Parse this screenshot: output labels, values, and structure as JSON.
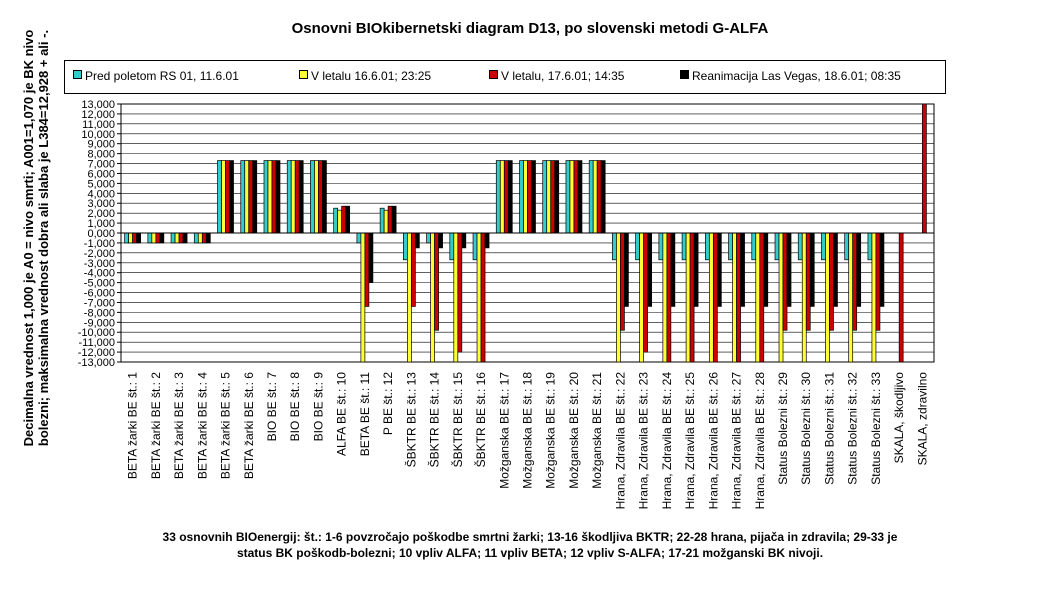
{
  "chart_data": {
    "type": "bar",
    "title": "Osnovni BIOkibernetski diagram D13, po slovenski metodi G-ALFA",
    "ylabel": "Decimalna vrednost 1,000 je A0 = nivo smrti; A001=1,070 je BK nivo bolezni; maksimalna vrednost dobra ali slaba je L384=12,928 + ali -.",
    "xlabel": "",
    "ylim": [
      -13,
      13
    ],
    "y_ticks": [
      "-13,000",
      "-12,000",
      "-11,000",
      "-10,000",
      "-9,000",
      "-8,000",
      "-7,000",
      "-6,000",
      "-5,000",
      "-4,000",
      "-3,000",
      "-2,000",
      "-1,000",
      "0,000",
      "1,000",
      "2,000",
      "3,000",
      "4,000",
      "5,000",
      "6,000",
      "7,000",
      "8,000",
      "9,000",
      "10,000",
      "11,000",
      "12,000",
      "13,000"
    ],
    "grid": true,
    "legend_position": "top",
    "categories": [
      "BETA žarki BE št.: 1",
      "BETA žarki BE št.: 2",
      "BETA žarki BE št.: 3",
      "BETA žarki BE št.: 4",
      "BETA žarki BE št.: 5",
      "BETA žarki BE št.: 6",
      "BIO BE št.: 7",
      "BIO BE št.: 8",
      "BIO BE št.: 9",
      "ALFA BE št.: 10",
      "BETA BE št.: 11",
      "P BE št.: 12",
      "ŠBKTR BE št.: 13",
      "ŠBKTR BE št.: 14",
      "ŠBKTR BE št.: 15",
      "ŠBKTR BE št.: 16",
      "Možganska BE št.: 17",
      "Možganska BE št.: 18",
      "Možganska BE št.: 19",
      "Možganska BE št.: 20",
      "Možganska BE št.: 21",
      "Hrana, Zdravila BE št.: 22",
      "Hrana, Zdravila BE št.: 23",
      "Hrana, Zdravila BE št.: 24",
      "Hrana, Zdravila BE št.: 25",
      "Hrana, Zdravila BE št.: 26",
      "Hrana, Zdravila BE št.: 27",
      "Hrana, Zdravila BE št.: 28",
      "Status Bolezni št.: 29",
      "Status Bolezni št.: 30",
      "Status Bolezni št.: 31",
      "Status Bolezni št.: 32",
      "Status Bolezni št.: 33",
      "SKALA, škodljivo",
      "SKALA, zdravilno"
    ],
    "series": [
      {
        "name": "Pred poletom RS 01, 11.6.01",
        "color": "#33cccc",
        "values": [
          -1,
          -1,
          -1,
          -1,
          7.3,
          7.3,
          7.3,
          7.3,
          7.3,
          2.5,
          -1,
          2.5,
          -2.7,
          -1,
          -2.7,
          -2.7,
          7.3,
          7.3,
          7.3,
          7.3,
          7.3,
          -2.7,
          -2.7,
          -2.7,
          -2.7,
          -2.7,
          -2.7,
          -2.7,
          -2.7,
          -2.7,
          -2.7,
          -2.7,
          -2.7,
          0,
          0
        ]
      },
      {
        "name": "V letalu 16.6.01; 23:25",
        "color": "#ffff33",
        "values": [
          -1,
          -1,
          -1,
          -1,
          7.3,
          7.3,
          7.3,
          7.3,
          7.3,
          2.3,
          -13,
          2.3,
          -13,
          -13,
          -13,
          -13,
          7.3,
          7.3,
          7.3,
          7.3,
          7.3,
          -13,
          -13,
          -13,
          -13,
          -13,
          -13,
          -13,
          -13,
          -13,
          -13,
          -13,
          -13,
          0,
          0
        ]
      },
      {
        "name": "V letalu, 17.6.01; 14:35",
        "color": "#cc0000",
        "values": [
          -1,
          -1,
          -1,
          -1,
          7.3,
          7.3,
          7.3,
          7.3,
          7.3,
          2.7,
          -7.4,
          2.7,
          -7.4,
          -9.8,
          -12,
          -13,
          7.3,
          7.3,
          7.3,
          7.3,
          7.3,
          -9.8,
          -12,
          -13,
          -13,
          -13,
          -13,
          -13,
          -9.8,
          -9.8,
          -9.8,
          -9.8,
          -9.8,
          -13,
          13
        ]
      },
      {
        "name": "Reanimacija Las Vegas, 18.6.01; 08:35",
        "color": "#000000",
        "values": [
          -1,
          -1,
          -1,
          -1,
          7.3,
          7.3,
          7.3,
          7.3,
          7.3,
          2.7,
          -5,
          2.7,
          -1.5,
          -1.5,
          -1.5,
          -1.5,
          7.3,
          7.3,
          7.3,
          7.3,
          7.3,
          -7.4,
          -7.4,
          -7.4,
          -7.4,
          -7.4,
          -7.4,
          -7.4,
          -7.4,
          -7.4,
          -7.4,
          -7.4,
          -7.4,
          0,
          0
        ]
      }
    ],
    "footnote_line1": "33 osnovnih BIOenergij: št.: 1-6 povzročajo poškodbe smrtni žarki; 13-16 škodljiva BKTR; 22-28 hrana, pijača in zdravila; 29-33 je",
    "footnote_line2": "status BK poškodb-bolezni; 10 vpliv ALFA; 11 vpliv BETA; 12 vpliv S-ALFA; 17-21 možganski BK nivoji."
  }
}
